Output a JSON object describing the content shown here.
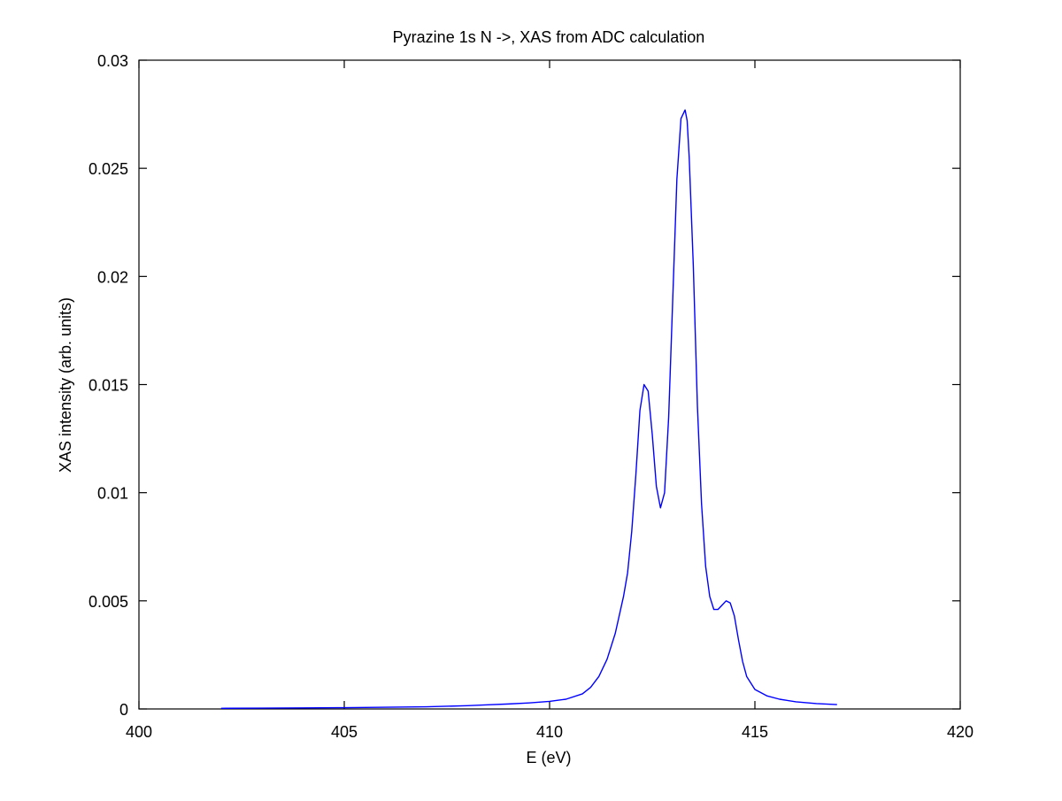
{
  "chart_data": {
    "type": "line",
    "title": "Pyrazine 1s N ->, XAS from ADC calculation",
    "xlabel": "E (eV)",
    "ylabel": "XAS intensity (arb. units)",
    "xlim": [
      400,
      420
    ],
    "ylim": [
      0,
      0.03
    ],
    "xticks": [
      400,
      405,
      410,
      415,
      420
    ],
    "xtick_labels": [
      "400",
      "405",
      "410",
      "415",
      "420"
    ],
    "yticks": [
      0,
      0.005,
      0.01,
      0.015,
      0.02,
      0.025,
      0.03
    ],
    "ytick_labels": [
      "0",
      "0.005",
      "0.01",
      "0.015",
      "0.02",
      "0.025",
      "0.03"
    ],
    "grid": false,
    "legend": "none",
    "series_color": "#0000ff",
    "series": [
      {
        "x": [
          402.0,
          403.0,
          404.0,
          405.0,
          406.0,
          407.0,
          408.0,
          408.5,
          409.0,
          409.5,
          410.0,
          410.4,
          410.8,
          411.0,
          411.2,
          411.4,
          411.6,
          411.8,
          411.9,
          412.0,
          412.1,
          412.2,
          412.3,
          412.4,
          412.5,
          412.6,
          412.7,
          412.8,
          412.9,
          413.0,
          413.1,
          413.2,
          413.3,
          413.35,
          413.4,
          413.5,
          413.6,
          413.7,
          413.8,
          413.9,
          414.0,
          414.1,
          414.2,
          414.3,
          414.4,
          414.5,
          414.6,
          414.7,
          414.8,
          415.0,
          415.3,
          415.6,
          416.0,
          416.5,
          417.0
        ],
        "y": [
          3e-05,
          4e-05,
          5e-05,
          6e-05,
          8e-05,
          0.0001,
          0.00015,
          0.00019,
          0.00023,
          0.00028,
          0.00035,
          0.00045,
          0.0007,
          0.001,
          0.0015,
          0.0023,
          0.0035,
          0.0052,
          0.0063,
          0.0082,
          0.0108,
          0.0138,
          0.015,
          0.0147,
          0.0127,
          0.0103,
          0.0093,
          0.01,
          0.0135,
          0.019,
          0.0245,
          0.0273,
          0.0277,
          0.0272,
          0.0255,
          0.0205,
          0.014,
          0.0095,
          0.0066,
          0.0052,
          0.0046,
          0.0046,
          0.0048,
          0.005,
          0.0049,
          0.0043,
          0.0032,
          0.0022,
          0.0015,
          0.0009,
          0.0006,
          0.00045,
          0.00033,
          0.00025,
          0.0002
        ]
      }
    ]
  }
}
